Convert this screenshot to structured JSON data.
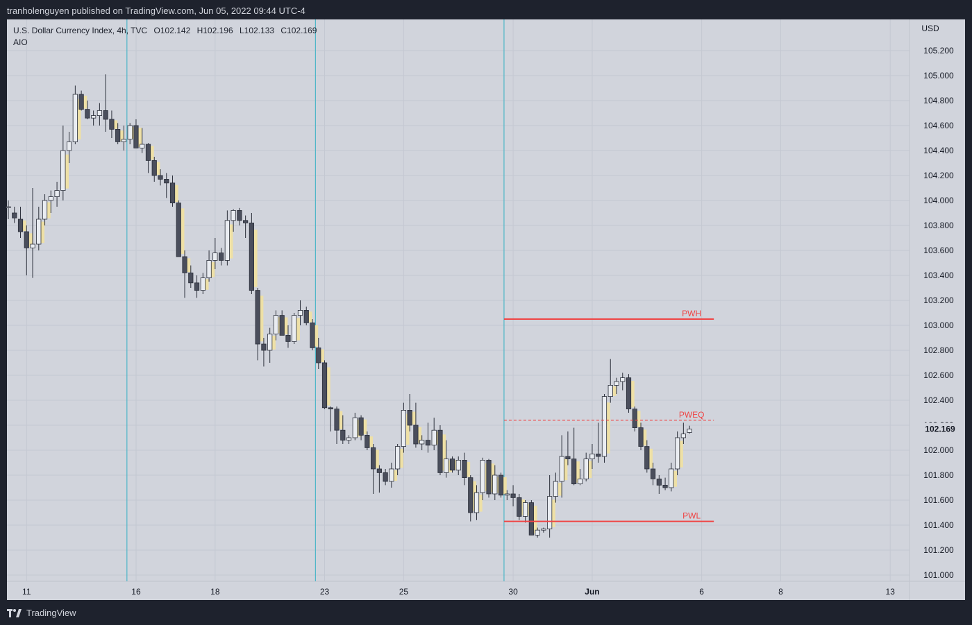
{
  "header": {
    "publisher": "tranholenguyen published on TradingView.com, Jun 05, 2022 09:44 UTC-4"
  },
  "legend": {
    "symbol": "U.S. Dollar Currency Index, 4h, TVC",
    "open": "O102.142",
    "high": "H102.196",
    "low": "L102.133",
    "close": "C102.169",
    "indicator": "AIO"
  },
  "footer": {
    "brand": "TradingView"
  },
  "colors": {
    "background": "#d1d4dc",
    "bear_body": "#4a4e5c",
    "bull_body": "#e9ecf1",
    "wick": "#2b2f3a",
    "shadow_box": "#eee0a6",
    "session_line": "#4db6c8",
    "level_line": "#ef4444",
    "grid": "#c4c8d2"
  },
  "chart_data": {
    "type": "candlestick",
    "title": "U.S. Dollar Currency Index, 4h, TVC",
    "currency": "USD",
    "last_price": "102.169",
    "ylim": [
      100.95,
      105.45
    ],
    "y_ticks": [
      "105.200",
      "105.000",
      "104.800",
      "104.600",
      "104.400",
      "104.200",
      "104.000",
      "103.800",
      "103.600",
      "103.400",
      "103.200",
      "103.000",
      "102.800",
      "102.600",
      "102.400",
      "102.200",
      "102.000",
      "101.800",
      "101.600",
      "101.400",
      "101.200",
      "101.000"
    ],
    "x_ticks": [
      {
        "label": "11",
        "i": 3
      },
      {
        "label": "16",
        "i": 21
      },
      {
        "label": "18",
        "i": 34
      },
      {
        "label": "23",
        "i": 52
      },
      {
        "label": "25",
        "i": 65
      },
      {
        "label": "30",
        "i": 83
      },
      {
        "label": "Jun",
        "i": 96,
        "bold": true
      },
      {
        "label": "6",
        "i": 114
      },
      {
        "label": "8",
        "i": 127
      },
      {
        "label": "13",
        "i": 145
      }
    ],
    "session_lines": [
      19.5,
      50.5,
      81.5
    ],
    "levels": [
      {
        "label": "PWH",
        "value": 103.05,
        "style": "solid",
        "from": 81.5,
        "to": 116
      },
      {
        "label": "PWEQ",
        "value": 102.24,
        "style": "dashed",
        "from": 81.5,
        "to": 116
      },
      {
        "label": "PWL",
        "value": 101.43,
        "style": "solid",
        "from": 81.5,
        "to": 116
      }
    ],
    "candles": [
      {
        "o": 103.95,
        "h": 104.0,
        "l": 103.85,
        "c": 103.95
      },
      {
        "o": 103.9,
        "h": 103.95,
        "l": 103.82,
        "c": 103.86
      },
      {
        "o": 103.85,
        "h": 103.95,
        "l": 103.7,
        "c": 103.75
      },
      {
        "o": 103.75,
        "h": 103.8,
        "l": 103.4,
        "c": 103.62
      },
      {
        "o": 103.62,
        "h": 104.1,
        "l": 103.38,
        "c": 103.65
      },
      {
        "o": 103.65,
        "h": 103.95,
        "l": 103.6,
        "c": 103.85
      },
      {
        "o": 103.85,
        "h": 104.05,
        "l": 103.8,
        "c": 104.0
      },
      {
        "o": 104.0,
        "h": 104.08,
        "l": 103.9,
        "c": 104.03
      },
      {
        "o": 104.03,
        "h": 104.15,
        "l": 103.95,
        "c": 104.08
      },
      {
        "o": 104.08,
        "h": 104.6,
        "l": 104.0,
        "c": 104.4
      },
      {
        "o": 104.4,
        "h": 104.55,
        "l": 104.3,
        "c": 104.47
      },
      {
        "o": 104.47,
        "h": 104.92,
        "l": 104.45,
        "c": 104.85
      },
      {
        "o": 104.85,
        "h": 104.88,
        "l": 104.72,
        "c": 104.73
      },
      {
        "o": 104.73,
        "h": 104.8,
        "l": 104.65,
        "c": 104.66
      },
      {
        "o": 104.66,
        "h": 104.72,
        "l": 104.6,
        "c": 104.68
      },
      {
        "o": 104.68,
        "h": 104.78,
        "l": 104.6,
        "c": 104.72
      },
      {
        "o": 104.72,
        "h": 105.01,
        "l": 104.55,
        "c": 104.65
      },
      {
        "o": 104.65,
        "h": 104.72,
        "l": 104.5,
        "c": 104.57
      },
      {
        "o": 104.57,
        "h": 104.62,
        "l": 104.45,
        "c": 104.47
      },
      {
        "o": 104.47,
        "h": 104.6,
        "l": 104.4,
        "c": 104.49
      },
      {
        "o": 104.49,
        "h": 104.62,
        "l": 104.45,
        "c": 104.6
      },
      {
        "o": 104.6,
        "h": 104.65,
        "l": 104.42,
        "c": 104.42
      },
      {
        "o": 104.42,
        "h": 104.58,
        "l": 104.38,
        "c": 104.45
      },
      {
        "o": 104.45,
        "h": 104.46,
        "l": 104.22,
        "c": 104.32
      },
      {
        "o": 104.32,
        "h": 104.35,
        "l": 104.15,
        "c": 104.2
      },
      {
        "o": 104.2,
        "h": 104.25,
        "l": 104.12,
        "c": 104.17
      },
      {
        "o": 104.17,
        "h": 104.22,
        "l": 104.02,
        "c": 104.14
      },
      {
        "o": 104.14,
        "h": 104.2,
        "l": 103.95,
        "c": 103.98
      },
      {
        "o": 103.98,
        "h": 104.0,
        "l": 103.55,
        "c": 103.55
      },
      {
        "o": 103.55,
        "h": 103.6,
        "l": 103.22,
        "c": 103.42
      },
      {
        "o": 103.42,
        "h": 103.48,
        "l": 103.3,
        "c": 103.34
      },
      {
        "o": 103.34,
        "h": 103.4,
        "l": 103.22,
        "c": 103.28
      },
      {
        "o": 103.28,
        "h": 103.42,
        "l": 103.25,
        "c": 103.38
      },
      {
        "o": 103.38,
        "h": 103.6,
        "l": 103.35,
        "c": 103.52
      },
      {
        "o": 103.52,
        "h": 103.7,
        "l": 103.45,
        "c": 103.58
      },
      {
        "o": 103.58,
        "h": 103.62,
        "l": 103.48,
        "c": 103.52
      },
      {
        "o": 103.52,
        "h": 103.92,
        "l": 103.48,
        "c": 103.84
      },
      {
        "o": 103.84,
        "h": 103.93,
        "l": 103.75,
        "c": 103.92
      },
      {
        "o": 103.92,
        "h": 103.94,
        "l": 103.8,
        "c": 103.84
      },
      {
        "o": 103.84,
        "h": 103.88,
        "l": 103.7,
        "c": 103.82
      },
      {
        "o": 103.82,
        "h": 103.9,
        "l": 103.25,
        "c": 103.28
      },
      {
        "o": 103.28,
        "h": 103.3,
        "l": 102.72,
        "c": 102.85
      },
      {
        "o": 102.85,
        "h": 102.9,
        "l": 102.67,
        "c": 102.8
      },
      {
        "o": 102.8,
        "h": 102.98,
        "l": 102.7,
        "c": 102.93
      },
      {
        "o": 102.93,
        "h": 103.12,
        "l": 102.88,
        "c": 103.08
      },
      {
        "o": 103.08,
        "h": 103.12,
        "l": 102.92,
        "c": 102.92
      },
      {
        "o": 102.92,
        "h": 103.0,
        "l": 102.82,
        "c": 102.87
      },
      {
        "o": 102.87,
        "h": 103.1,
        "l": 102.85,
        "c": 103.08
      },
      {
        "o": 103.08,
        "h": 103.2,
        "l": 103.0,
        "c": 103.12
      },
      {
        "o": 103.12,
        "h": 103.15,
        "l": 103.0,
        "c": 103.02
      },
      {
        "o": 103.02,
        "h": 103.05,
        "l": 102.8,
        "c": 102.82
      },
      {
        "o": 102.82,
        "h": 102.9,
        "l": 102.65,
        "c": 102.7
      },
      {
        "o": 102.7,
        "h": 102.72,
        "l": 102.33,
        "c": 102.34
      },
      {
        "o": 102.34,
        "h": 102.35,
        "l": 102.15,
        "c": 102.33
      },
      {
        "o": 102.33,
        "h": 102.35,
        "l": 102.05,
        "c": 102.16
      },
      {
        "o": 102.16,
        "h": 102.28,
        "l": 102.05,
        "c": 102.08
      },
      {
        "o": 102.08,
        "h": 102.12,
        "l": 102.05,
        "c": 102.1
      },
      {
        "o": 102.1,
        "h": 102.3,
        "l": 102.08,
        "c": 102.26
      },
      {
        "o": 102.26,
        "h": 102.28,
        "l": 102.08,
        "c": 102.12
      },
      {
        "o": 102.12,
        "h": 102.15,
        "l": 102.0,
        "c": 102.02
      },
      {
        "o": 102.02,
        "h": 102.05,
        "l": 101.65,
        "c": 101.85
      },
      {
        "o": 101.85,
        "h": 101.88,
        "l": 101.66,
        "c": 101.82
      },
      {
        "o": 101.82,
        "h": 101.85,
        "l": 101.72,
        "c": 101.75
      },
      {
        "o": 101.75,
        "h": 101.9,
        "l": 101.7,
        "c": 101.85
      },
      {
        "o": 101.85,
        "h": 102.05,
        "l": 101.8,
        "c": 102.03
      },
      {
        "o": 102.03,
        "h": 102.38,
        "l": 101.98,
        "c": 102.32
      },
      {
        "o": 102.32,
        "h": 102.45,
        "l": 102.15,
        "c": 102.2
      },
      {
        "o": 102.2,
        "h": 102.38,
        "l": 102.02,
        "c": 102.05
      },
      {
        "o": 102.05,
        "h": 102.12,
        "l": 102.0,
        "c": 102.08
      },
      {
        "o": 102.08,
        "h": 102.22,
        "l": 101.98,
        "c": 102.04
      },
      {
        "o": 102.04,
        "h": 102.26,
        "l": 102.0,
        "c": 102.16
      },
      {
        "o": 102.16,
        "h": 102.2,
        "l": 101.8,
        "c": 101.82
      },
      {
        "o": 101.82,
        "h": 102.08,
        "l": 101.78,
        "c": 101.93
      },
      {
        "o": 101.93,
        "h": 101.95,
        "l": 101.82,
        "c": 101.84
      },
      {
        "o": 101.84,
        "h": 101.95,
        "l": 101.8,
        "c": 101.92
      },
      {
        "o": 101.92,
        "h": 101.98,
        "l": 101.72,
        "c": 101.78
      },
      {
        "o": 101.78,
        "h": 101.8,
        "l": 101.43,
        "c": 101.5
      },
      {
        "o": 101.5,
        "h": 101.72,
        "l": 101.44,
        "c": 101.66
      },
      {
        "o": 101.66,
        "h": 101.94,
        "l": 101.6,
        "c": 101.92
      },
      {
        "o": 101.92,
        "h": 101.93,
        "l": 101.62,
        "c": 101.65
      },
      {
        "o": 101.65,
        "h": 101.88,
        "l": 101.6,
        "c": 101.8
      },
      {
        "o": 101.8,
        "h": 101.82,
        "l": 101.62,
        "c": 101.64
      },
      {
        "o": 101.64,
        "h": 101.68,
        "l": 101.6,
        "c": 101.65
      },
      {
        "o": 101.65,
        "h": 101.72,
        "l": 101.55,
        "c": 101.62
      },
      {
        "o": 101.62,
        "h": 101.65,
        "l": 101.44,
        "c": 101.47
      },
      {
        "o": 101.47,
        "h": 101.6,
        "l": 101.42,
        "c": 101.58
      },
      {
        "o": 101.58,
        "h": 101.6,
        "l": 101.32,
        "c": 101.32
      },
      {
        "o": 101.32,
        "h": 101.38,
        "l": 101.3,
        "c": 101.36
      },
      {
        "o": 101.36,
        "h": 101.38,
        "l": 101.34,
        "c": 101.37
      },
      {
        "o": 101.37,
        "h": 101.8,
        "l": 101.3,
        "c": 101.63
      },
      {
        "o": 101.63,
        "h": 101.82,
        "l": 101.58,
        "c": 101.75
      },
      {
        "o": 101.75,
        "h": 102.12,
        "l": 101.62,
        "c": 101.95
      },
      {
        "o": 101.95,
        "h": 102.15,
        "l": 101.88,
        "c": 101.93
      },
      {
        "o": 101.93,
        "h": 102.18,
        "l": 101.72,
        "c": 101.73
      },
      {
        "o": 101.73,
        "h": 101.85,
        "l": 101.72,
        "c": 101.77
      },
      {
        "o": 101.77,
        "h": 101.98,
        "l": 101.75,
        "c": 101.93
      },
      {
        "o": 101.93,
        "h": 102.05,
        "l": 101.85,
        "c": 101.97
      },
      {
        "o": 101.97,
        "h": 102.22,
        "l": 101.9,
        "c": 101.95
      },
      {
        "o": 101.95,
        "h": 102.45,
        "l": 101.9,
        "c": 102.43
      },
      {
        "o": 102.43,
        "h": 102.73,
        "l": 102.38,
        "c": 102.52
      },
      {
        "o": 102.52,
        "h": 102.58,
        "l": 102.45,
        "c": 102.55
      },
      {
        "o": 102.55,
        "h": 102.62,
        "l": 102.48,
        "c": 102.58
      },
      {
        "o": 102.58,
        "h": 102.61,
        "l": 102.3,
        "c": 102.33
      },
      {
        "o": 102.33,
        "h": 102.35,
        "l": 102.15,
        "c": 102.18
      },
      {
        "o": 102.18,
        "h": 102.22,
        "l": 102.0,
        "c": 102.03
      },
      {
        "o": 102.03,
        "h": 102.08,
        "l": 101.82,
        "c": 101.85
      },
      {
        "o": 101.85,
        "h": 101.9,
        "l": 101.72,
        "c": 101.77
      },
      {
        "o": 101.77,
        "h": 101.8,
        "l": 101.65,
        "c": 101.72
      },
      {
        "o": 101.72,
        "h": 101.78,
        "l": 101.68,
        "c": 101.7
      },
      {
        "o": 101.7,
        "h": 101.9,
        "l": 101.67,
        "c": 101.85
      },
      {
        "o": 101.85,
        "h": 102.15,
        "l": 101.8,
        "c": 102.1
      },
      {
        "o": 102.1,
        "h": 102.22,
        "l": 102.05,
        "c": 102.13
      },
      {
        "o": 102.142,
        "h": 102.196,
        "l": 102.133,
        "c": 102.169
      }
    ]
  }
}
